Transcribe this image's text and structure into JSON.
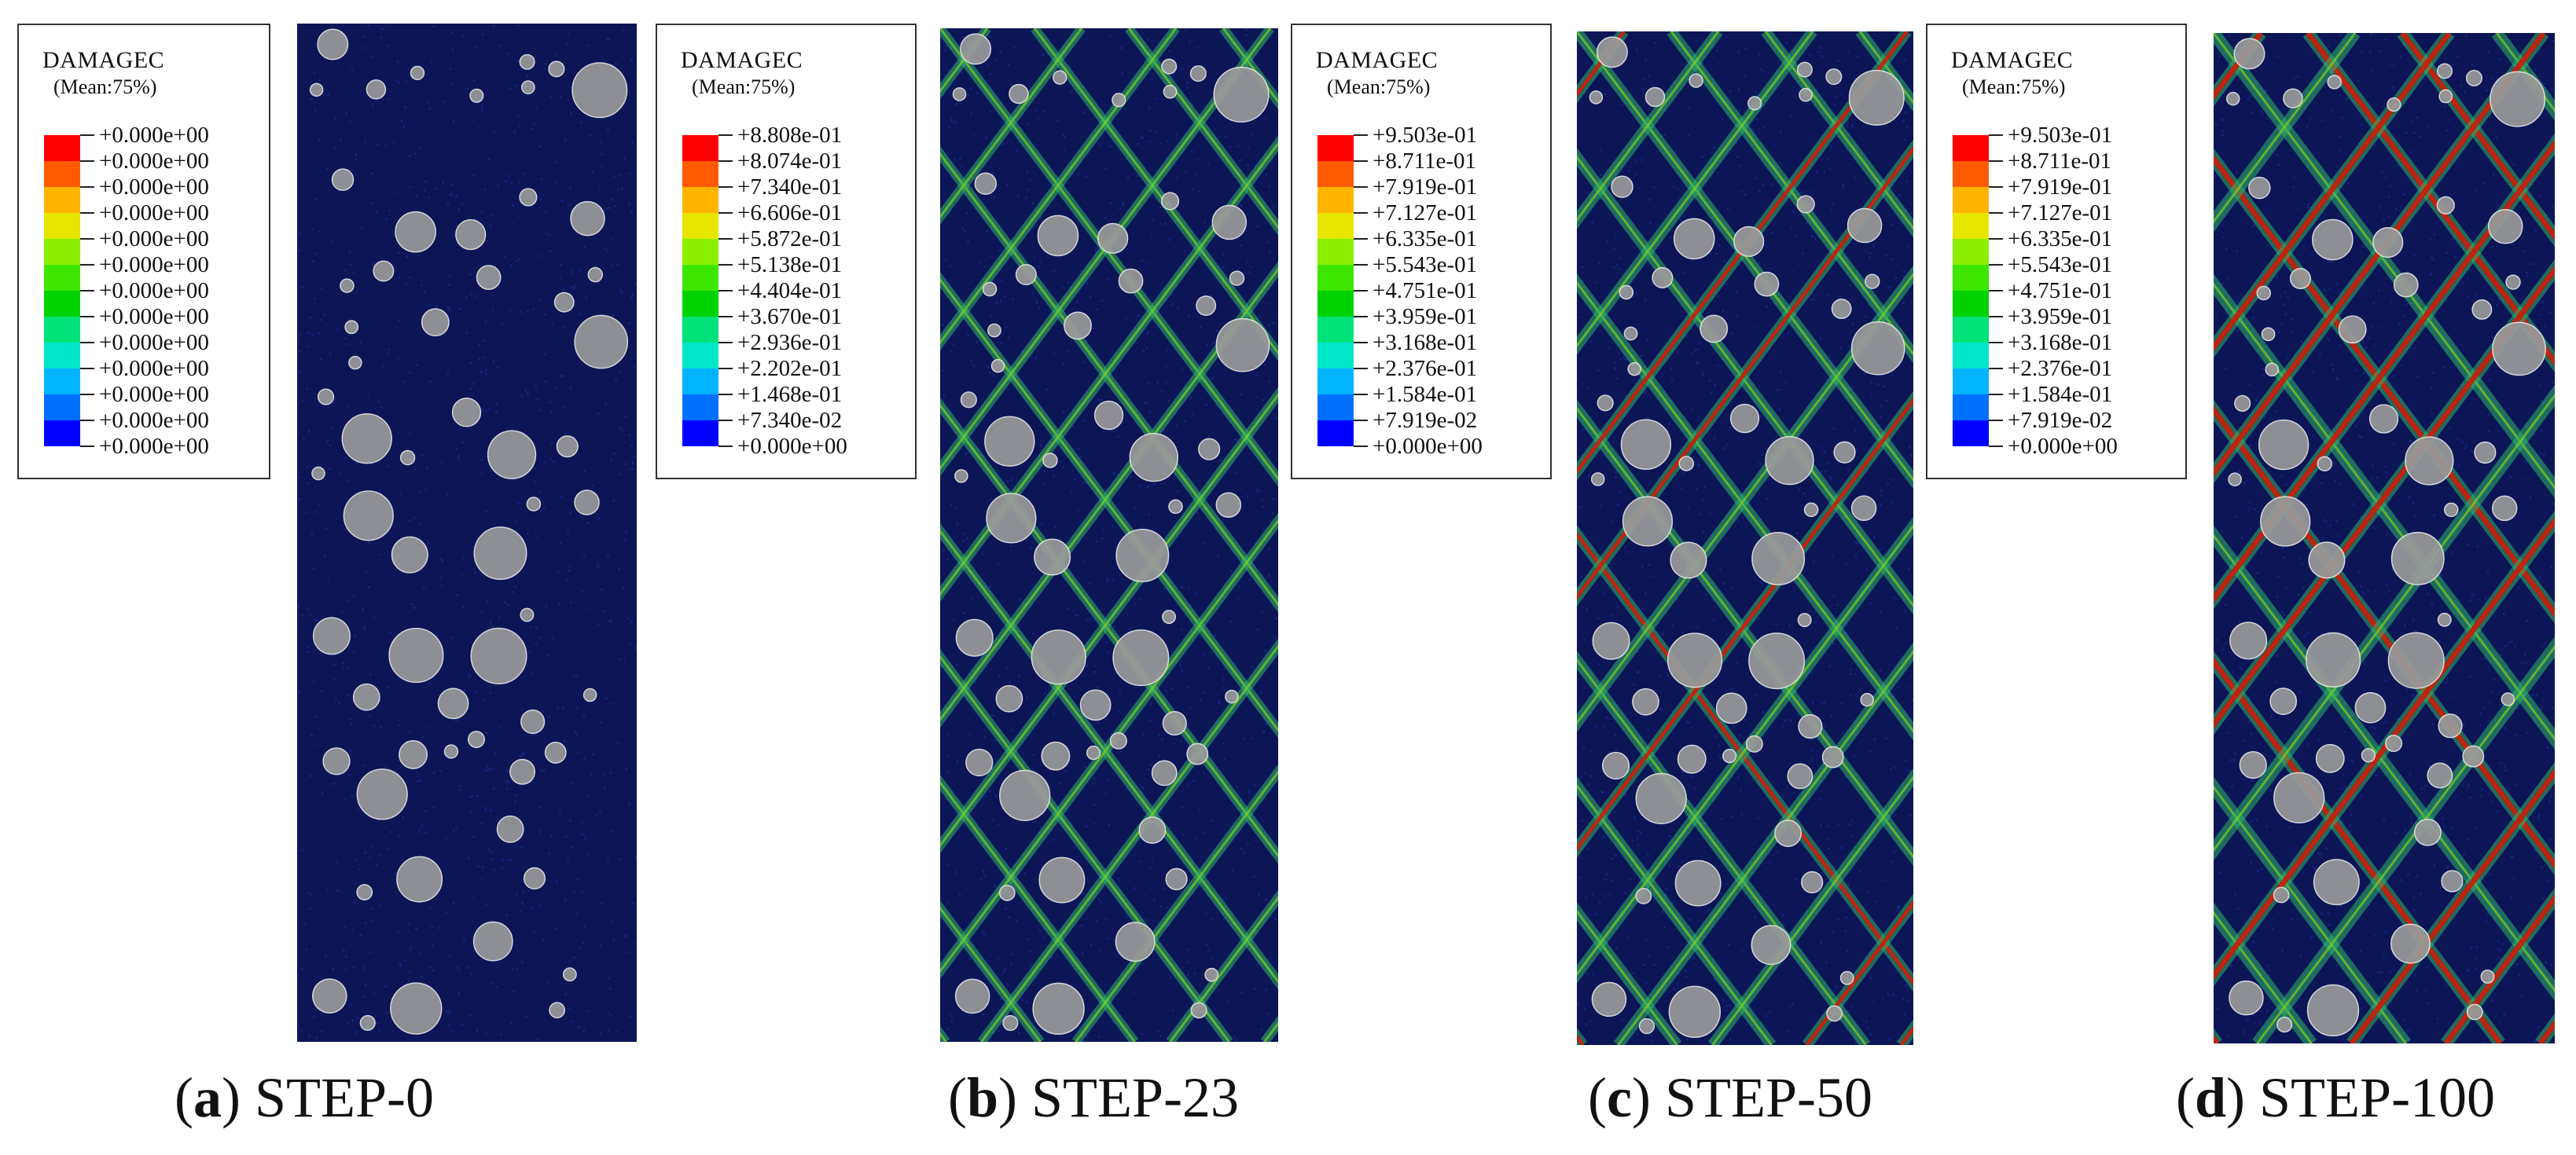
{
  "figure": {
    "panels": [
      {
        "id": "a",
        "letter": "a",
        "step": "STEP-0",
        "legend": {
          "title": "DAMAGEC",
          "mean": "(Mean:75%)",
          "ticks": [
            "+0.000e+00",
            "+0.000e+00",
            "+0.000e+00",
            "+0.000e+00",
            "+0.000e+00",
            "+0.000e+00",
            "+0.000e+00",
            "+0.000e+00",
            "+0.000e+00",
            "+0.000e+00",
            "+0.000e+00",
            "+0.000e+00",
            "+0.000e+00"
          ]
        },
        "damage_level": 0
      },
      {
        "id": "b",
        "letter": "b",
        "step": "STEP-23",
        "legend": {
          "title": "DAMAGEC",
          "mean": "(Mean:75%)",
          "ticks": [
            "+8.808e-01",
            "+8.074e-01",
            "+7.340e-01",
            "+6.606e-01",
            "+5.872e-01",
            "+5.138e-01",
            "+4.404e-01",
            "+3.670e-01",
            "+2.936e-01",
            "+2.202e-01",
            "+1.468e-01",
            "+7.340e-02",
            "+0.000e+00"
          ]
        },
        "damage_level": 1
      },
      {
        "id": "c",
        "letter": "c",
        "step": "STEP-50",
        "legend": {
          "title": "DAMAGEC",
          "mean": "(Mean:75%)",
          "ticks": [
            "+9.503e-01",
            "+8.711e-01",
            "+7.919e-01",
            "+7.127e-01",
            "+6.335e-01",
            "+5.543e-01",
            "+4.751e-01",
            "+3.959e-01",
            "+3.168e-01",
            "+2.376e-01",
            "+1.584e-01",
            "+7.919e-02",
            "+0.000e+00"
          ]
        },
        "damage_level": 2
      },
      {
        "id": "d",
        "letter": "d",
        "step": "STEP-100",
        "legend": {
          "title": "DAMAGEC",
          "mean": "(Mean:75%)",
          "ticks": [
            "+9.503e-01",
            "+8.711e-01",
            "+7.919e-01",
            "+7.127e-01",
            "+6.335e-01",
            "+5.543e-01",
            "+4.751e-01",
            "+3.959e-01",
            "+3.168e-01",
            "+2.376e-01",
            "+1.584e-01",
            "+7.919e-02",
            "+0.000e+00"
          ]
        },
        "damage_level": 3
      }
    ],
    "colormap": [
      "#ff0000",
      "#ff5a00",
      "#ffb400",
      "#e6e600",
      "#8cf000",
      "#3ee600",
      "#00d200",
      "#00e27a",
      "#00e6c8",
      "#00b4ff",
      "#0070ff",
      "#0000ff"
    ],
    "colors": {
      "background": "#0c1556",
      "aggregate": "#9a9a9a",
      "crack_low": "#2db36b",
      "crack_mid": "#7fd01f",
      "crack_high": "#c61a0c"
    }
  }
}
